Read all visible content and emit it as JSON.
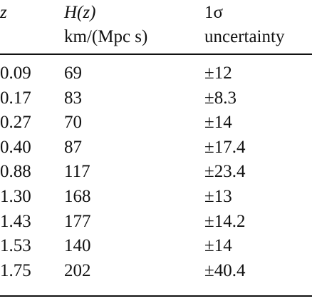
{
  "table": {
    "columns": [
      {
        "label": "z"
      },
      {
        "label": "H(z)",
        "unit": "km/(Mpc s)"
      },
      {
        "label": "1σ",
        "unit": "uncertainty"
      }
    ],
    "rows": [
      [
        "0.09",
        "69",
        "±12"
      ],
      [
        "0.17",
        "83",
        "±8.3"
      ],
      [
        "0.27",
        "70",
        "±14"
      ],
      [
        "0.40",
        "87",
        "±17.4"
      ],
      [
        "0.88",
        "117",
        "±23.4"
      ],
      [
        "1.30",
        "168",
        "±13"
      ],
      [
        "1.43",
        "177",
        "±14.2"
      ],
      [
        "1.53",
        "140",
        "±14"
      ],
      [
        "1.75",
        "202",
        "±40.4"
      ]
    ]
  }
}
